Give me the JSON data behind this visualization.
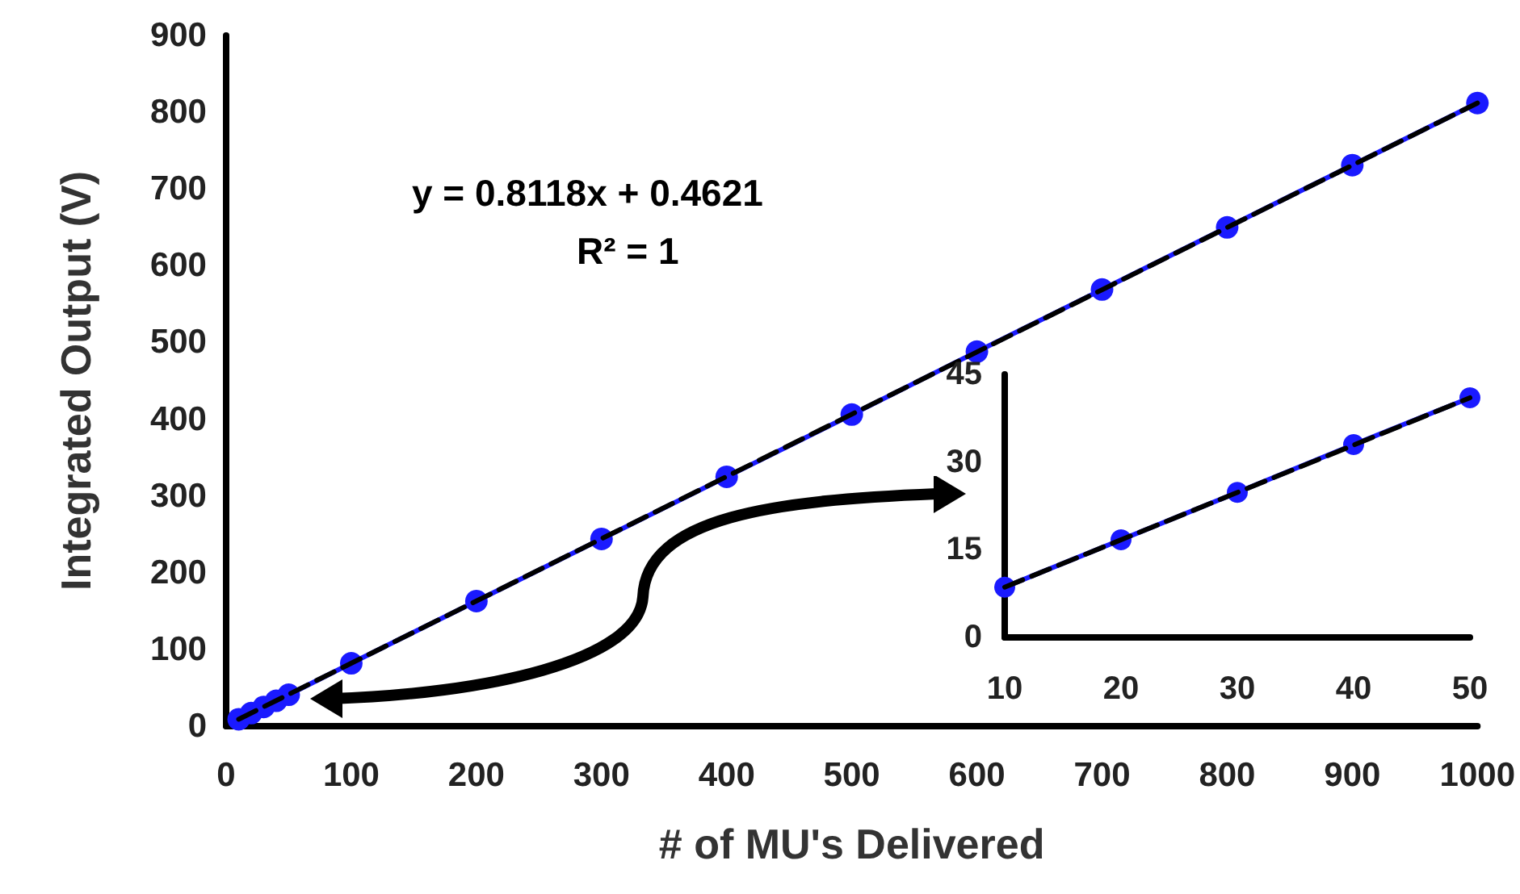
{
  "chart_data": [
    {
      "type": "line",
      "xlabel": "# of MU's Delivered",
      "ylabel": "Integrated Output (V)",
      "annotations": [
        "y = 0.8118x + 0.4621",
        "R² = 1"
      ],
      "xlim": [
        0,
        1000
      ],
      "xticks": [
        0,
        100,
        200,
        300,
        400,
        500,
        600,
        700,
        800,
        900,
        1000
      ],
      "ylim": [
        0,
        900
      ],
      "yticks": [
        0,
        100,
        200,
        300,
        400,
        500,
        600,
        700,
        800,
        900
      ],
      "series": [
        {
          "color": "#1a1aff",
          "marker": "circle",
          "line_style": "solid",
          "x": [
            10,
            20,
            30,
            40,
            50,
            100,
            200,
            300,
            400,
            500,
            600,
            700,
            800,
            900,
            1000
          ],
          "values": [
            9,
            17,
            25,
            33,
            41,
            82,
            163,
            244,
            325,
            406,
            488,
            569,
            650,
            731,
            812
          ]
        },
        {
          "color": "#000000",
          "marker": "none",
          "line_style": "dashed",
          "x": [
            10,
            1000
          ],
          "values": [
            9,
            812
          ]
        }
      ]
    },
    {
      "type": "line",
      "xlim": [
        10,
        50
      ],
      "xticks": [
        10,
        20,
        30,
        40,
        50
      ],
      "ylim": [
        0,
        45
      ],
      "yticks": [
        0,
        15,
        30,
        45
      ],
      "series": [
        {
          "color": "#1a1aff",
          "marker": "circle",
          "line_style": "solid",
          "x": [
            10,
            20,
            30,
            40,
            50
          ],
          "values": [
            8.6,
            16.7,
            24.8,
            33,
            41
          ]
        },
        {
          "color": "#000000",
          "marker": "none",
          "line_style": "dashed",
          "x": [
            10,
            50
          ],
          "values": [
            8.6,
            41
          ]
        }
      ]
    }
  ]
}
